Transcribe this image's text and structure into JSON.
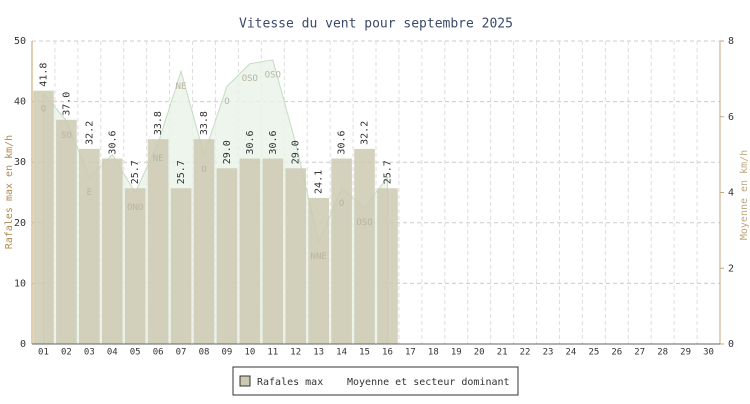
{
  "chart_data": {
    "type": "bar",
    "title": "Vitesse du vent pour septembre 2025",
    "ylabel": "Rafales max en km/h",
    "y2label": "Moyenne en km/h",
    "categories": [
      "01",
      "02",
      "03",
      "04",
      "05",
      "06",
      "07",
      "08",
      "09",
      "10",
      "11",
      "12",
      "13",
      "14",
      "15",
      "16",
      "17",
      "18",
      "19",
      "20",
      "21",
      "22",
      "23",
      "24",
      "25",
      "26",
      "27",
      "28",
      "29",
      "30"
    ],
    "series": [
      {
        "name": "Rafales max",
        "color": "#cdc9b1",
        "values": [
          41.8,
          37.0,
          32.2,
          30.6,
          25.7,
          33.8,
          25.7,
          33.8,
          29.0,
          30.6,
          30.6,
          29.0,
          24.1,
          30.6,
          32.2,
          25.7,
          null,
          null,
          null,
          null,
          null,
          null,
          null,
          null,
          null,
          null,
          null,
          null,
          null,
          null
        ],
        "value_labels": [
          "41.8",
          "37.0",
          "32.2",
          "30.6",
          "25.7",
          "33.8",
          "25.7",
          "33.8",
          "29.0",
          "30.6",
          "30.6",
          "29.0",
          "24.1",
          "30.6",
          "32.2",
          "25.7",
          null,
          null,
          null,
          null,
          null,
          null,
          null,
          null,
          null,
          null,
          null,
          null,
          null,
          null
        ]
      },
      {
        "name": "Moyenne et secteur dominant",
        "color": "#c5dcc5",
        "axis": "y2",
        "values": [
          6.6,
          5.9,
          4.4,
          5.0,
          4.0,
          5.3,
          7.2,
          5.0,
          6.8,
          7.4,
          7.5,
          5.3,
          2.7,
          4.1,
          3.6,
          4.4,
          null,
          null,
          null,
          null,
          null,
          null,
          null,
          null,
          null,
          null,
          null,
          null,
          null,
          null
        ],
        "labels": [
          "O",
          "SO",
          "E",
          null,
          "ONO",
          "NE",
          "NE",
          "O",
          "O",
          "OSO",
          "OSO",
          null,
          "NNE",
          "O",
          "OSO",
          null,
          null,
          null,
          null,
          null,
          null,
          null,
          null,
          null,
          null,
          null,
          null,
          null,
          null,
          null
        ]
      }
    ],
    "ylim": [
      0,
      50
    ],
    "yticks": [
      0,
      10,
      20,
      30,
      40,
      50
    ],
    "y2lim": [
      0,
      8
    ],
    "y2ticks": [
      0,
      2,
      4,
      6,
      8
    ],
    "grid": true,
    "legend": "bottom"
  }
}
